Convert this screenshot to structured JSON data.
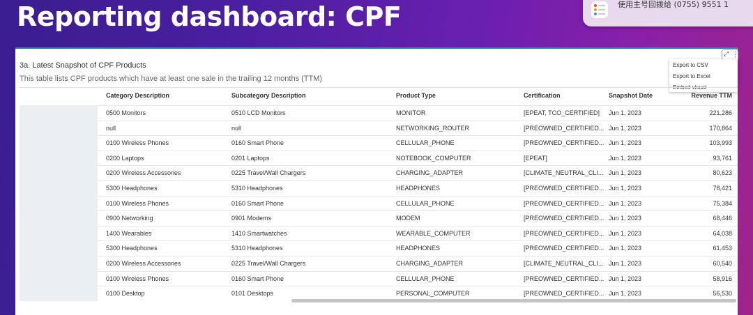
{
  "slide": {
    "title": "Reporting dashboard: CPF"
  },
  "notification": {
    "text": "使用主号回拨给 (0755) 9551 1"
  },
  "panel": {
    "title": "3a. Latest Snapshot of CPF Products",
    "subtitle": "This table lists CPF products which have at least one sale in the trailing 12 months (TTM)",
    "icons": {
      "expand": "expand-icon",
      "more": "more-options-icon"
    },
    "menu": [
      "Export to CSV",
      "Export to Excel",
      "Embed visual"
    ]
  },
  "table": {
    "columns": [
      "Category Description",
      "Subcategory Description",
      "Product Type",
      "Certification",
      "Snapshot Date",
      "Revenue TTM"
    ],
    "rows": [
      [
        "0500 Monitors",
        "0510 LCD Monitors",
        "MONITOR",
        "[EPEAT, TCO_CERTIFIED]",
        "Jun 1, 2023",
        "221,286"
      ],
      [
        "null",
        "null",
        "NETWORKING_ROUTER",
        "[PREOWNED_CERTIFIED...",
        "Jun 1, 2023",
        "170,864"
      ],
      [
        "0100 Wireless Phones",
        "0160 Smart Phone",
        "CELLULAR_PHONE",
        "[PREOWNED_CERTIFIED...",
        "Jun 1, 2023",
        "103,993"
      ],
      [
        "0200 Laptops",
        "0201 Laptops",
        "NOTEBOOK_COMPUTER",
        "[EPEAT]",
        "Jun 1, 2023",
        "93,761"
      ],
      [
        "0200 Wireless Accessories",
        "0225 Travel/Wall Chargers",
        "CHARGING_ADAPTER",
        "[CLIMATE_NEUTRAL_CLI...",
        "Jun 1, 2023",
        "80,623"
      ],
      [
        "5300 Headphones",
        "5310 Headphones",
        "HEADPHONES",
        "[PREOWNED_CERTIFIED...",
        "Jun 1, 2023",
        "78,421"
      ],
      [
        "0100 Wireless Phones",
        "0160 Smart Phone",
        "CELLULAR_PHONE",
        "[PREOWNED_CERTIFIED...",
        "Jun 1, 2023",
        "75,384"
      ],
      [
        "0900 Networking",
        "0901 Modems",
        "MODEM",
        "[PREOWNED_CERTIFIED...",
        "Jun 1, 2023",
        "68,446"
      ],
      [
        "1400 Wearables",
        "1410 Smartwatches",
        "WEARABLE_COMPUTER",
        "[PREOWNED_CERTIFIED...",
        "Jun 1, 2023",
        "64,038"
      ],
      [
        "5300 Headphones",
        "5310 Headphones",
        "HEADPHONES",
        "[PREOWNED_CERTIFIED...",
        "Jun 1, 2023",
        "61,453"
      ],
      [
        "0200 Wireless Accessories",
        "0225 Travel/Wall Chargers",
        "CHARGING_ADAPTER",
        "[CLIMATE_NEUTRAL_CLI...",
        "Jun 1, 2023",
        "60,540"
      ],
      [
        "0100 Wireless Phones",
        "0160 Smart Phone",
        "CELLULAR_PHONE",
        "[PREOWNED_CERTIFIED...",
        "Jun 1, 2023",
        "58,916"
      ],
      [
        "0100 Desktop",
        "0101 Desktops",
        "PERSONAL_COMPUTER",
        "[PREOWNED_CERTIFIED...",
        "Jun 1, 2023",
        "56,530"
      ]
    ]
  }
}
